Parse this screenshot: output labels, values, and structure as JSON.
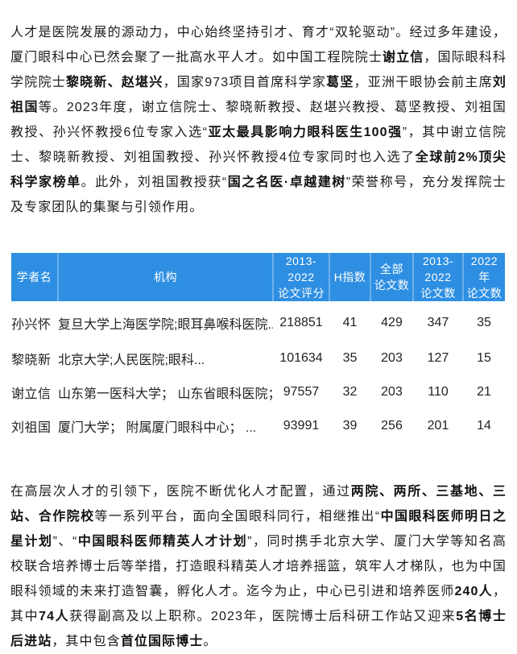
{
  "accent_color": "#2e8fe2",
  "page_background": "#ffffff",
  "intro_paragraph": {
    "segments": [
      {
        "text": "人才是医院发展的源动力，中心始终坚持引才、育才“双轮驱动”。经过多年建设，厦门眼科中心已然会聚了一批高水平人才。如中国工程院院士",
        "bold": false
      },
      {
        "text": "谢立信",
        "bold": true
      },
      {
        "text": "，国际眼科科学院院士",
        "bold": false
      },
      {
        "text": "黎晓新、赵堪兴",
        "bold": true
      },
      {
        "text": "，国家973项目首席科学家",
        "bold": false
      },
      {
        "text": "葛坚",
        "bold": true
      },
      {
        "text": "，亚洲干眼协会前主席",
        "bold": false
      },
      {
        "text": "刘祖国",
        "bold": true
      },
      {
        "text": "等。2023年度，谢立信院士、黎晓新教授、赵堪兴教授、葛坚教授、刘祖国教授、孙兴怀教授6位专家入选“",
        "bold": false
      },
      {
        "text": "亚太最具影响力眼科医生100强",
        "bold": true
      },
      {
        "text": "”，其中谢立信院士、黎晓新教授、刘祖国教授、孙兴怀教授4位专家同时也入选了",
        "bold": false
      },
      {
        "text": "全球前2%顶尖科学家榜单",
        "bold": true
      },
      {
        "text": "。此外，刘祖国教授获“",
        "bold": false
      },
      {
        "text": "国之名医·卓越建树",
        "bold": true
      },
      {
        "text": "”荣誉称号，充分发挥院士及专家团队的集聚与引领作用。",
        "bold": false
      }
    ]
  },
  "table": {
    "header_background": "#2e8fe2",
    "header_text_color": "#ffffff",
    "columns": [
      {
        "key": "scholar",
        "line1": "学者名",
        "line2": ""
      },
      {
        "key": "institution",
        "line1": "机构",
        "line2": ""
      },
      {
        "key": "score",
        "line1": "2013-2022",
        "line2": "论文评分"
      },
      {
        "key": "h_index",
        "line1": "H指数",
        "line2": ""
      },
      {
        "key": "total_papers",
        "line1": "全部",
        "line2": "论文数"
      },
      {
        "key": "papers_2013_2022",
        "line1": "2013-2022",
        "line2": "论文数"
      },
      {
        "key": "papers_2022",
        "line1": "2022年",
        "line2": "论文数"
      }
    ],
    "rows": [
      {
        "scholar": "孙兴怀",
        "institution": "复旦大学上海医学院;眼耳鼻喉科医院...",
        "score": "218851",
        "h_index": "41",
        "total_papers": "429",
        "papers_2013_2022": "347",
        "papers_2022": "35"
      },
      {
        "scholar": "黎晓新",
        "institution": "北京大学;人民医院;眼科...",
        "score": "101634",
        "h_index": "35",
        "total_papers": "203",
        "papers_2013_2022": "127",
        "papers_2022": "15"
      },
      {
        "scholar": "谢立信",
        "institution": "山东第一医科大学； 山东省眼科医院； ...",
        "score": "97557",
        "h_index": "32",
        "total_papers": "203",
        "papers_2013_2022": "110",
        "papers_2022": "21"
      },
      {
        "scholar": "刘祖国",
        "institution": "厦门大学； 附属厦门眼科中心； ...",
        "score": "93991",
        "h_index": "39",
        "total_papers": "256",
        "papers_2013_2022": "201",
        "papers_2022": "14"
      }
    ]
  },
  "talent_paragraph": {
    "segments": [
      {
        "text": "在高层次人才的引领下，医院不断优化人才配置，通过",
        "bold": false
      },
      {
        "text": "两院、两所、三基地、三站、合作院校",
        "bold": true
      },
      {
        "text": "等一系列平台，面向全国眼科同行，相继推出“",
        "bold": false
      },
      {
        "text": "中国眼科医师明日之星计划",
        "bold": true
      },
      {
        "text": "”、“",
        "bold": false
      },
      {
        "text": "中国眼科医师精英人才计划",
        "bold": true
      },
      {
        "text": "”，同时携手北京大学、厦门大学等知名高校联合培养博士后等举措，打造眼科精英人才培养摇篮，筑牢人才梯队，也为中国眼科领域的未来打造智囊，孵化人才。迄今为止，中心已引进和培养医师",
        "bold": false
      },
      {
        "text": "240人",
        "bold": true
      },
      {
        "text": "，其中",
        "bold": false
      },
      {
        "text": "74人",
        "bold": true
      },
      {
        "text": "获得副高及以上职称。2023年，医院博士后科研工作站又迎来",
        "bold": false
      },
      {
        "text": "5名博士后进站",
        "bold": true
      },
      {
        "text": "，其中包含",
        "bold": false
      },
      {
        "text": "首位国际博士",
        "bold": true
      },
      {
        "text": "。",
        "bold": false
      }
    ]
  }
}
